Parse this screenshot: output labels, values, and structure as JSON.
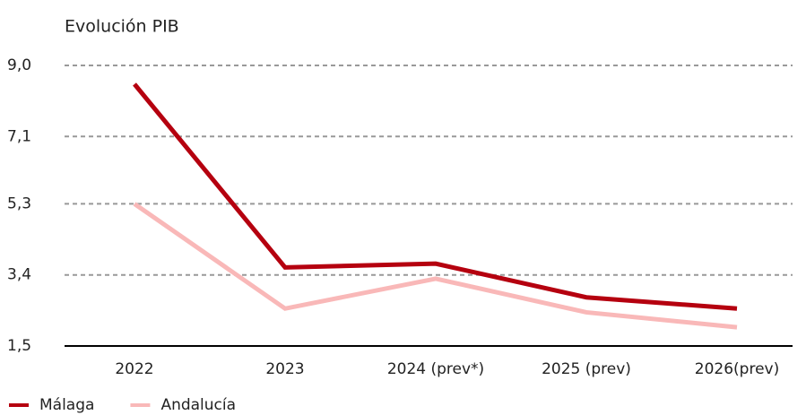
{
  "chart_data": {
    "type": "line",
    "title": "Evolución PIB",
    "categories": [
      "2022",
      "2023",
      "2024 (prev*)",
      "2025 (prev)",
      "2026(prev)"
    ],
    "series": [
      {
        "name": "Málaga",
        "color": "#b5000f",
        "values": [
          8.5,
          3.6,
          3.7,
          2.8,
          2.5
        ]
      },
      {
        "name": "Andalucía",
        "color": "#f9b8b8",
        "values": [
          5.3,
          2.5,
          3.3,
          2.4,
          2.0
        ]
      }
    ],
    "ylim": [
      1.5,
      9.0
    ],
    "yticks": [
      {
        "value": 1.5,
        "label": "1,5"
      },
      {
        "value": 3.4,
        "label": "3,4"
      },
      {
        "value": 5.3,
        "label": "5,3"
      },
      {
        "value": 7.1,
        "label": "7,1"
      },
      {
        "value": 9.0,
        "label": "9,0"
      }
    ],
    "grid": true
  }
}
